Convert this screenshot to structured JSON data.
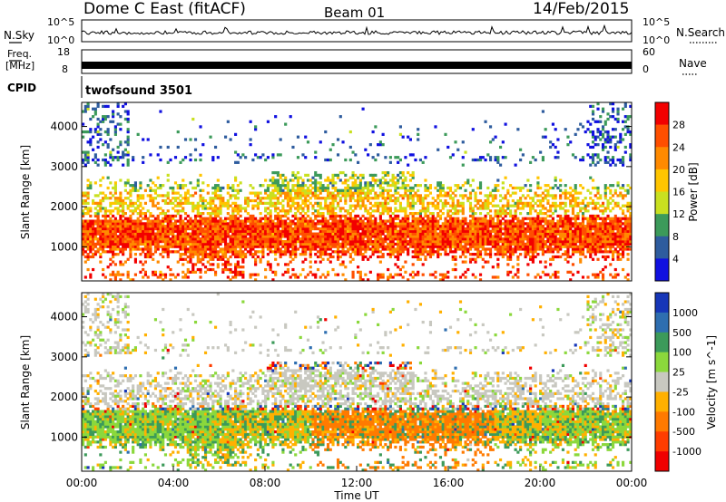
{
  "header": {
    "station": "Dome C East (fitACF)",
    "beam": "Beam 01",
    "date": "14/Feb/2015"
  },
  "aux_panels": {
    "nsky": {
      "label": "N.Sky",
      "ticks": [
        "10^5",
        "10^0"
      ]
    },
    "nsearch": {
      "label": "N.Search",
      "ticks": [
        "10^5",
        "10^0"
      ]
    },
    "freq": {
      "label_line1": "Freq.",
      "label_line2": "[MHz]",
      "ticks": [
        "18",
        "8"
      ]
    },
    "nave": {
      "label": "Nave",
      "ticks": [
        "60",
        "0"
      ]
    },
    "cpid": {
      "label": "CPID",
      "value": "twofsound 3501"
    }
  },
  "chart_data": [
    {
      "type": "heatmap",
      "title": "",
      "ylabel": "Slant Range [km]",
      "xlabel": "",
      "ylim": [
        150,
        4600
      ],
      "y_ticks": [
        "4000",
        "3000",
        "2000",
        "1000"
      ],
      "y_tick_values": [
        4000,
        3000,
        2000,
        1000
      ],
      "colorbar": {
        "label": "Power [dB]",
        "unit": "dB",
        "ticks": [
          "28",
          "24",
          "20",
          "16",
          "12",
          "8",
          "4"
        ],
        "colors": [
          "#f20000",
          "#ff4f00",
          "#ff8a00",
          "#ffc500",
          "#c9e020",
          "#3c9a5a",
          "#2e5c9e",
          "#1010e0"
        ]
      }
    },
    {
      "type": "heatmap",
      "title": "",
      "ylabel": "Slant Range [km]",
      "xlabel": "Time UT",
      "ylim": [
        150,
        4600
      ],
      "y_ticks": [
        "4000",
        "3000",
        "2000",
        "1000"
      ],
      "y_tick_values": [
        4000,
        3000,
        2000,
        1000
      ],
      "x_ticks": [
        "00:00",
        "04:00",
        "08:00",
        "12:00",
        "16:00",
        "20:00",
        "00:00"
      ],
      "colorbar": {
        "label": "Velocity [m s^-1]",
        "unit": "m s^-1",
        "ticks": [
          "1000",
          "500",
          "100",
          "25",
          "-25",
          "-100",
          "-500",
          "-1000"
        ],
        "colors": [
          "#1636b8",
          "#2e6eb0",
          "#3c9a5a",
          "#8bd83c",
          "#c8c8c0",
          "#ffb000",
          "#ff7a00",
          "#ff3d00",
          "#f00000"
        ]
      }
    }
  ]
}
